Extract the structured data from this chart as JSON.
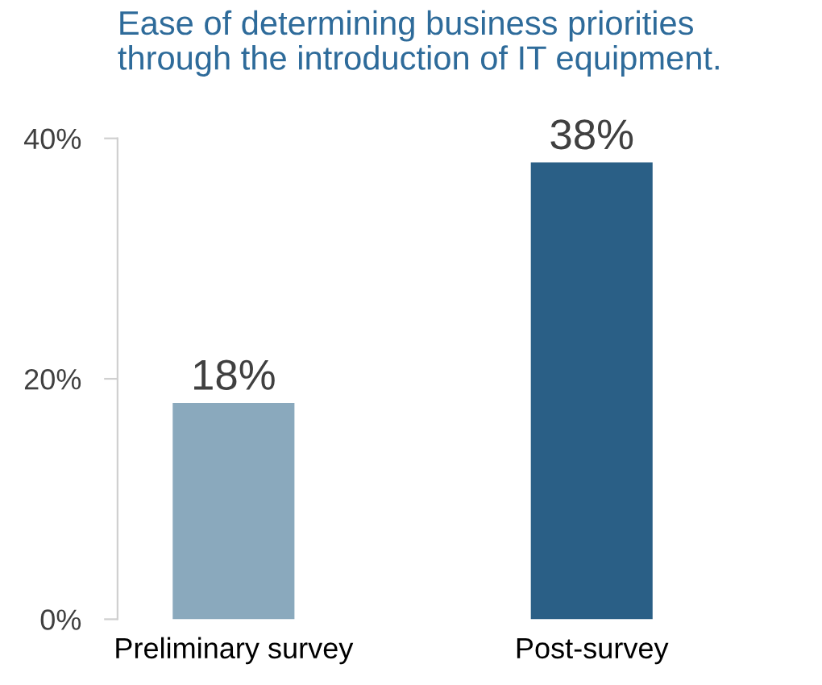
{
  "chart_data": {
    "type": "bar",
    "title": "Ease of determining business priorities\nthrough the introduction of IT equipment.",
    "categories": [
      "Preliminary survey",
      "Post-survey"
    ],
    "values": [
      18,
      38
    ],
    "colors": [
      "#8aa9bd",
      "#2a5f86"
    ],
    "value_labels": [
      "18%",
      "38%"
    ],
    "ylim": [
      0,
      40
    ],
    "yticks": [
      {
        "value": 0,
        "label": "0%"
      },
      {
        "value": 20,
        "label": "20%"
      },
      {
        "value": 40,
        "label": "40%"
      }
    ],
    "grid": false,
    "legend": false
  }
}
